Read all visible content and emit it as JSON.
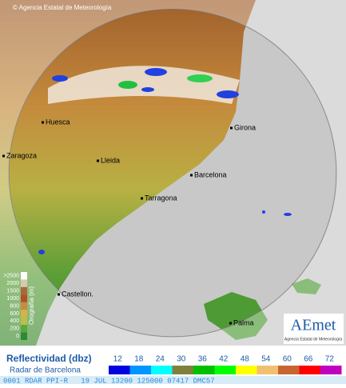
{
  "header": {
    "copyright": "© Agencia Estatal de Meteorología"
  },
  "cities": [
    {
      "name": "Huesca"
    },
    {
      "name": "Zaragoza"
    },
    {
      "name": "Lleida"
    },
    {
      "name": "Barcelona"
    },
    {
      "name": "Tarragona"
    },
    {
      "name": "Castellon."
    },
    {
      "name": "Girona"
    },
    {
      "name": "Palma"
    }
  ],
  "orography": {
    "title": "Orografía (m)",
    "labels": [
      ">2500",
      "2000",
      "1500",
      "1000",
      "800",
      "600",
      "400",
      "200",
      "0"
    ],
    "colors": [
      "#ffffff",
      "#d8c8b0",
      "#a86a3a",
      "#b0502a",
      "#c88a3c",
      "#d8b048",
      "#b8c048",
      "#5aa83c",
      "#2e8a30"
    ]
  },
  "logo": {
    "name": "AEmet",
    "subtitle": "Agencia Estatal de Meteorología"
  },
  "legend": {
    "title": "Reflectividad (dbz)",
    "subtitle": "Radar de Barcelona",
    "values": [
      12,
      18,
      24,
      30,
      36,
      42,
      48,
      54,
      60,
      66,
      72
    ],
    "colors": [
      "#0000e0",
      "#0096ff",
      "#00ffff",
      "#80803c",
      "#00c000",
      "#00ff00",
      "#ffff00",
      "#f0c070",
      "#c86432",
      "#ff0000",
      "#c000c0"
    ]
  },
  "footer": {
    "text": "0001 RDAR PPI-R   19 JUL 13200 125000 07417 DMC57"
  }
}
